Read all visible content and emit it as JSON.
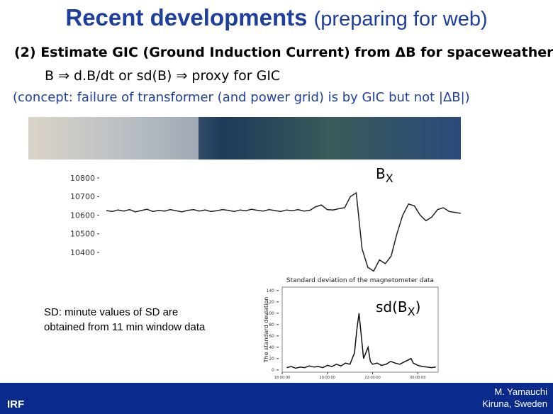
{
  "header": {
    "title_bold": "Recent developments",
    "title_rest": "(preparing for web)"
  },
  "body": {
    "line1": "(2) Estimate GIC (Ground Induction Current) from ΔB for spaceweather",
    "line2": "B ⇒ d.B/dt  or  sd(B) ⇒ proxy for GIC",
    "line3": "(concept: failure of transformer (and power grid) is by GIC but not |ΔB|)"
  },
  "note": [
    "SD: minute values of SD are",
    "obtained from 11  min window data"
  ],
  "footer": {
    "logo": "IRF",
    "author": "M. Yamauchi",
    "place": "Kiruna, Sweden"
  },
  "chart_data": [
    {
      "type": "line",
      "label": [
        "B",
        "X",
        ""
      ],
      "color": "#222222",
      "ylim": [
        10290,
        10880
      ],
      "yticks": [
        10400,
        10500,
        10600,
        10700,
        10800
      ],
      "values": [
        10625,
        10620,
        10628,
        10622,
        10630,
        10618,
        10625,
        10632,
        10620,
        10626,
        10622,
        10630,
        10624,
        10618,
        10626,
        10630,
        10622,
        10628,
        10620,
        10624,
        10630,
        10626,
        10620,
        10628,
        10624,
        10632,
        10626,
        10622,
        10630,
        10625,
        10620,
        10628,
        10624,
        10630,
        10622,
        10626,
        10645,
        10655,
        10630,
        10628,
        10635,
        10640,
        10700,
        10720,
        10420,
        10320,
        10300,
        10360,
        10340,
        10380,
        10500,
        10600,
        10660,
        10650,
        10600,
        10570,
        10590,
        10630,
        10640,
        10620,
        10615,
        10610
      ]
    },
    {
      "type": "line",
      "title": "Standard deviation of the magnetometer data",
      "ylabel": "The standard deviation",
      "label": [
        "sd(B",
        "X",
        ")"
      ],
      "color": "#111111",
      "xlim": [
        18,
        24.9
      ],
      "ylim": [
        -4,
        146
      ],
      "xticks": [
        {
          "value": 18,
          "label": "18:00:00"
        },
        {
          "value": 20,
          "label": "20:00:00"
        },
        {
          "value": 22,
          "label": "22:00:00"
        },
        {
          "value": 24,
          "label": "00:00:00"
        }
      ],
      "yticks": [
        0,
        20,
        40,
        60,
        80,
        100,
        120,
        140
      ],
      "x": [
        18.2,
        18.4,
        18.6,
        18.8,
        19.0,
        19.2,
        19.4,
        19.6,
        19.8,
        20.0,
        20.2,
        20.4,
        20.6,
        20.8,
        21.0,
        21.2,
        21.3,
        21.4,
        21.5,
        21.6,
        21.7,
        21.8,
        21.9,
        22.0,
        22.2,
        22.4,
        22.6,
        22.8,
        23.0,
        23.2,
        23.4,
        23.6,
        23.7,
        23.8,
        24.0,
        24.2,
        24.4,
        24.6,
        24.8
      ],
      "values": [
        4,
        6,
        3,
        5,
        4,
        7,
        5,
        6,
        4,
        8,
        6,
        10,
        7,
        12,
        10,
        30,
        70,
        100,
        60,
        20,
        30,
        40,
        15,
        10,
        12,
        8,
        10,
        15,
        12,
        10,
        14,
        18,
        20,
        12,
        8,
        6,
        5,
        4,
        5
      ]
    }
  ]
}
